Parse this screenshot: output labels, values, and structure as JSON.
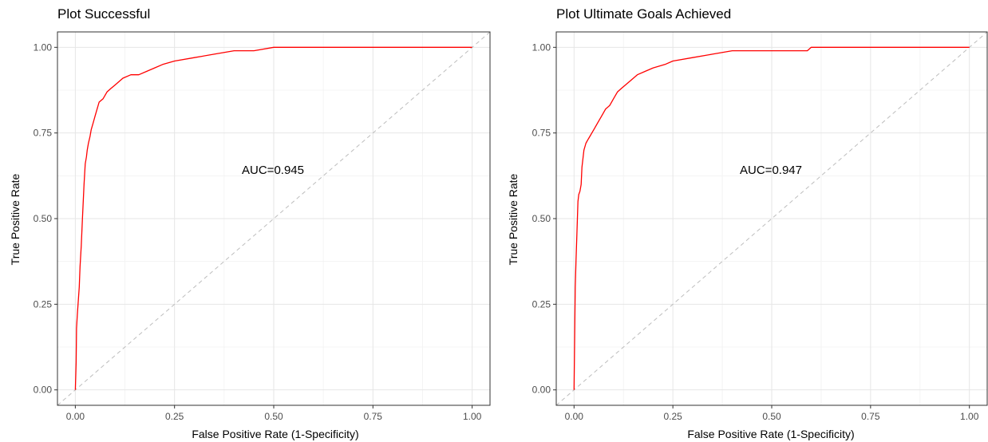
{
  "chart_data": [
    {
      "type": "line",
      "title": "Plot Successful",
      "xlabel": "False Positive Rate (1-Specificity)",
      "ylabel": "True Positive Rate",
      "xlim": [
        0,
        1
      ],
      "ylim": [
        0,
        1
      ],
      "xticks": [
        "0.00",
        "0.25",
        "0.50",
        "0.75",
        "1.00"
      ],
      "yticks": [
        "0.00",
        "0.25",
        "0.50",
        "0.75",
        "1.00"
      ],
      "grid": true,
      "annotation": "AUC=0.945",
      "colors": {
        "roc": "#ff0000",
        "reference": "#bdbdbd"
      },
      "series": [
        {
          "x": [
            0,
            0.002,
            0.003,
            0.005,
            0.008,
            0.01,
            0.012,
            0.015,
            0.018,
            0.02,
            0.022,
            0.025,
            0.028,
            0.03,
            0.033,
            0.037,
            0.04,
            0.045,
            0.05,
            0.055,
            0.06,
            0.07,
            0.08,
            0.09,
            0.1,
            0.11,
            0.12,
            0.14,
            0.16,
            0.18,
            0.2,
            0.22,
            0.25,
            0.3,
            0.35,
            0.4,
            0.45,
            0.5,
            1.0
          ],
          "y": [
            0,
            0.08,
            0.18,
            0.22,
            0.27,
            0.3,
            0.36,
            0.42,
            0.5,
            0.55,
            0.6,
            0.66,
            0.68,
            0.7,
            0.72,
            0.74,
            0.76,
            0.78,
            0.8,
            0.82,
            0.84,
            0.85,
            0.87,
            0.88,
            0.89,
            0.9,
            0.91,
            0.92,
            0.92,
            0.93,
            0.94,
            0.95,
            0.96,
            0.97,
            0.98,
            0.99,
            0.99,
            1.0,
            1.0
          ]
        }
      ]
    },
    {
      "type": "line",
      "title": "Plot Ultimate Goals Achieved",
      "xlabel": "False Positive Rate (1-Specificity)",
      "ylabel": "True Positive Rate",
      "xlim": [
        0,
        1
      ],
      "ylim": [
        0,
        1
      ],
      "xticks": [
        "0.00",
        "0.25",
        "0.50",
        "0.75",
        "1.00"
      ],
      "yticks": [
        "0.00",
        "0.25",
        "0.50",
        "0.75",
        "1.00"
      ],
      "grid": true,
      "annotation": "AUC=0.947",
      "colors": {
        "roc": "#ff0000",
        "reference": "#bdbdbd"
      },
      "series": [
        {
          "x": [
            0,
            0.001,
            0.002,
            0.003,
            0.005,
            0.007,
            0.01,
            0.012,
            0.015,
            0.018,
            0.02,
            0.025,
            0.03,
            0.035,
            0.04,
            0.045,
            0.05,
            0.06,
            0.07,
            0.08,
            0.09,
            0.1,
            0.11,
            0.12,
            0.14,
            0.16,
            0.18,
            0.2,
            0.23,
            0.25,
            0.3,
            0.35,
            0.4,
            0.5,
            0.59,
            0.6,
            1.0
          ],
          "y": [
            0,
            0.1,
            0.2,
            0.3,
            0.38,
            0.45,
            0.55,
            0.57,
            0.58,
            0.6,
            0.65,
            0.7,
            0.72,
            0.73,
            0.74,
            0.75,
            0.76,
            0.78,
            0.8,
            0.82,
            0.83,
            0.85,
            0.87,
            0.88,
            0.9,
            0.92,
            0.93,
            0.94,
            0.95,
            0.96,
            0.97,
            0.98,
            0.99,
            0.99,
            0.99,
            1.0,
            1.0
          ]
        }
      ]
    }
  ]
}
